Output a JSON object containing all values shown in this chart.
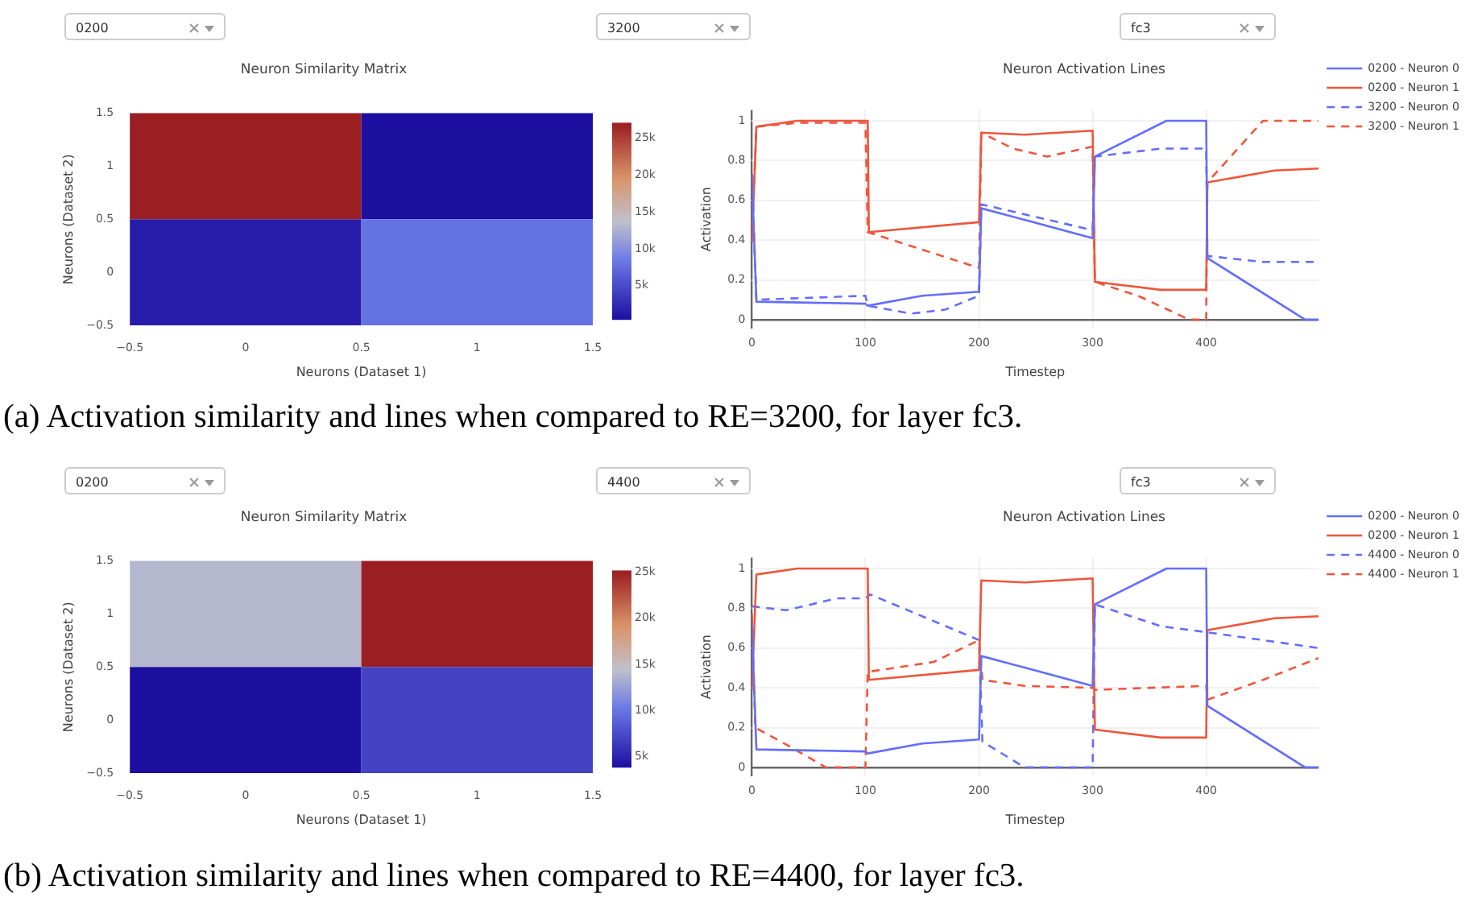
{
  "chart_data": [
    {
      "type": "other",
      "annotations": [
        "0200",
        "3200",
        "fc3"
      ]
    },
    {
      "type": "heatmap",
      "title": "Neuron Similarity Matrix",
      "xlabel": "Neurons (Dataset 1)",
      "ylabel": "Neurons (Dataset 2)",
      "cells": [
        [
          27100,
          500
        ],
        [
          1500,
          8000
        ]
      ],
      "clim": [
        500,
        27100
      ],
      "cticks": [
        {
          "value": 5000,
          "label": "5k"
        },
        {
          "value": 10000,
          "label": "10k"
        },
        {
          "value": 15000,
          "label": "15k"
        },
        {
          "value": 20000,
          "label": "20k"
        },
        {
          "value": 25000,
          "label": "25k"
        }
      ],
      "xlim": [
        -0.5,
        1.5
      ],
      "xticks": [
        {
          "value": -0.5,
          "label": "−0.5"
        },
        0,
        0.5,
        1,
        1.5
      ],
      "ylim": [
        -0.5,
        1.5
      ],
      "yticks": [
        {
          "value": -0.5,
          "label": "−0.5"
        },
        0,
        0.5,
        1,
        1.5
      ]
    },
    {
      "type": "line",
      "title": "Neuron Activation Lines",
      "xlabel": "Timestep",
      "ylabel": "Activation",
      "xlim": [
        0,
        499
      ],
      "xticks": [
        0,
        100,
        200,
        300,
        400
      ],
      "ylim": [
        -0.045,
        1.055
      ],
      "yticks": [
        0,
        0.2,
        0.4,
        0.6,
        0.8,
        1
      ],
      "grid": true,
      "legend": "top right",
      "marker": "none",
      "series": [
        {
          "name": "0200 - Neuron 0",
          "color": "#636efa",
          "line_style": "solid",
          "x": [
            0,
            4,
            100,
            102,
            150,
            200,
            202,
            300,
            302,
            365,
            400,
            401,
            487,
            499
          ],
          "values": [
            0.73,
            0.09,
            0.08,
            0.07,
            0.12,
            0.14,
            0.56,
            0.41,
            0.82,
            1.0,
            1.0,
            0.31,
            0,
            0
          ]
        },
        {
          "name": "0200 - Neuron 1",
          "color": "#ef553b",
          "line_style": "solid",
          "x": [
            0,
            4,
            40,
            102,
            103,
            200,
            202,
            240,
            300,
            302,
            360,
            400,
            401,
            460,
            499
          ],
          "values": [
            0.39,
            0.97,
            1.0,
            1.0,
            0.44,
            0.49,
            0.94,
            0.93,
            0.95,
            0.19,
            0.15,
            0.15,
            0.69,
            0.75,
            0.76
          ]
        },
        {
          "name": "3200 - Neuron 0",
          "color": "#636efa",
          "line_style": "dashed",
          "x": [
            0,
            4,
            100,
            102,
            140,
            170,
            200,
            202,
            300,
            302,
            360,
            400,
            401,
            450,
            499
          ],
          "values": [
            0.73,
            0.1,
            0.12,
            0.07,
            0.03,
            0.05,
            0.12,
            0.58,
            0.45,
            0.82,
            0.86,
            0.86,
            0.32,
            0.29,
            0.29
          ]
        },
        {
          "name": "3200 - Neuron 1",
          "color": "#ef553b",
          "line_style": "dashed",
          "x": [
            0,
            4,
            40,
            100,
            102,
            200,
            202,
            230,
            260,
            300,
            302,
            340,
            385,
            400,
            401,
            450,
            499
          ],
          "values": [
            0.39,
            0.97,
            0.99,
            0.99,
            0.44,
            0.26,
            0.94,
            0.86,
            0.82,
            0.87,
            0.19,
            0.12,
            0,
            0,
            0.69,
            1.0,
            1.0
          ]
        }
      ]
    },
    {
      "type": "other",
      "annotations": [
        "(a) Activation similarity and lines when compared to RE=3200, for layer fc3."
      ]
    },
    {
      "type": "other",
      "annotations": [
        "0200",
        "4400",
        "fc3"
      ]
    },
    {
      "type": "heatmap",
      "title": "Neuron Similarity Matrix",
      "xlabel": "Neurons (Dataset 1)",
      "ylabel": "Neurons (Dataset 2)",
      "cells": [
        [
          14000,
          25200
        ],
        [
          3900,
          7000
        ]
      ],
      "clim": [
        3900,
        25200
      ],
      "cticks": [
        {
          "value": 5000,
          "label": "5k"
        },
        {
          "value": 10000,
          "label": "10k"
        },
        {
          "value": 15000,
          "label": "15k"
        },
        {
          "value": 20000,
          "label": "20k"
        },
        {
          "value": 25000,
          "label": "25k"
        }
      ],
      "xlim": [
        -0.5,
        1.5
      ],
      "xticks": [
        {
          "value": -0.5,
          "label": "−0.5"
        },
        0,
        0.5,
        1,
        1.5
      ],
      "ylim": [
        -0.5,
        1.5
      ],
      "yticks": [
        {
          "value": -0.5,
          "label": "−0.5"
        },
        0,
        0.5,
        1,
        1.5
      ]
    },
    {
      "type": "line",
      "title": "Neuron Activation Lines",
      "xlabel": "Timestep",
      "ylabel": "Activation",
      "xlim": [
        0,
        499
      ],
      "xticks": [
        0,
        100,
        200,
        300,
        400
      ],
      "ylim": [
        -0.045,
        1.055
      ],
      "yticks": [
        0,
        0.2,
        0.4,
        0.6,
        0.8,
        1
      ],
      "grid": true,
      "legend": "top right",
      "marker": "none",
      "series": [
        {
          "name": "0200 - Neuron 0",
          "color": "#636efa",
          "line_style": "solid",
          "x": [
            0,
            4,
            100,
            102,
            150,
            200,
            202,
            300,
            302,
            365,
            400,
            401,
            487,
            499
          ],
          "values": [
            0.73,
            0.09,
            0.08,
            0.07,
            0.12,
            0.14,
            0.56,
            0.41,
            0.82,
            1.0,
            1.0,
            0.31,
            0,
            0
          ]
        },
        {
          "name": "0200 - Neuron 1",
          "color": "#ef553b",
          "line_style": "solid",
          "x": [
            0,
            4,
            40,
            102,
            103,
            200,
            202,
            240,
            300,
            302,
            360,
            400,
            401,
            460,
            499
          ],
          "values": [
            0.39,
            0.97,
            1.0,
            1.0,
            0.44,
            0.49,
            0.94,
            0.93,
            0.95,
            0.19,
            0.15,
            0.15,
            0.69,
            0.75,
            0.76
          ]
        },
        {
          "name": "4400 - Neuron 0",
          "color": "#636efa",
          "line_style": "dashed",
          "x": [
            0,
            30,
            75,
            100,
            104,
            150,
            200,
            203,
            240,
            300,
            302,
            360,
            400,
            450,
            499
          ],
          "values": [
            0.81,
            0.79,
            0.85,
            0.85,
            0.87,
            0.76,
            0.64,
            0.13,
            0,
            0,
            0.82,
            0.71,
            0.68,
            0.64,
            0.6
          ]
        },
        {
          "name": "4400 - Neuron 1",
          "color": "#ef553b",
          "line_style": "dashed",
          "x": [
            0,
            3,
            35,
            65,
            100,
            102,
            160,
            200,
            203,
            240,
            300,
            303,
            350,
            400,
            401,
            450,
            499
          ],
          "values": [
            0.77,
            0.2,
            0.1,
            0,
            0,
            0.48,
            0.53,
            0.64,
            0.44,
            0.41,
            0.4,
            0.39,
            0.4,
            0.41,
            0.34,
            0.44,
            0.55
          ]
        }
      ]
    },
    {
      "type": "other",
      "annotations": [
        "(b) Activation similarity and lines when compared to RE=4400, for layer fc3."
      ]
    }
  ]
}
